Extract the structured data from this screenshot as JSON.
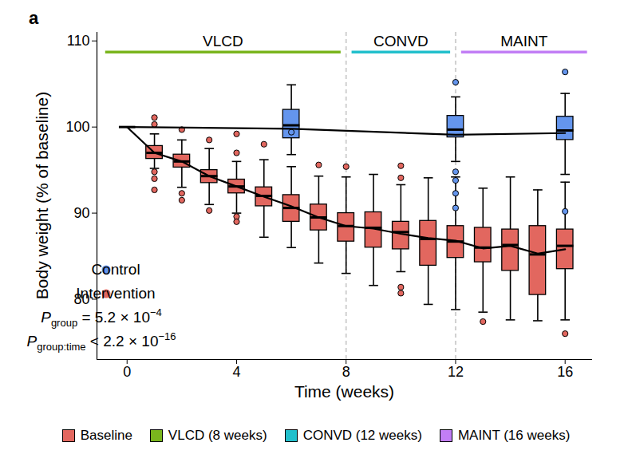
{
  "chart_data": {
    "type": "box",
    "title": "a",
    "x_label": "Time (weeks)",
    "y_label": "Body weight (% of baseline)",
    "xlim": [
      -1.1,
      17
    ],
    "ylim": [
      73,
      111
    ],
    "xticks": [
      0,
      4,
      8,
      12,
      16
    ],
    "yticks": [
      80,
      90,
      100,
      110
    ],
    "legend": "bottom-left",
    "dividers": [
      8,
      12
    ],
    "phase_y": 108.7,
    "phases": [
      {
        "name": "VLCD",
        "start": -0.8,
        "end": 7.8,
        "color": "#7ab51d"
      },
      {
        "name": "CONVD",
        "start": 8.2,
        "end": 11.8,
        "color": "#22c0cc"
      },
      {
        "name": "MAINT",
        "start": 12.2,
        "end": 16.8,
        "color": "#c27ef5"
      }
    ],
    "phase_legend": [
      {
        "label": "Baseline",
        "color": "#e2675f"
      },
      {
        "label": "VLCD (8 weeks)",
        "color": "#7ab51d"
      },
      {
        "label": "CONVD (12 weeks)",
        "color": "#22c0cc"
      },
      {
        "label": "MAINT (16 weeks)",
        "color": "#c27ef5"
      }
    ],
    "annotations": [
      {
        "text": "P",
        "subscript": "group",
        "rest": " = 5.2 × 10",
        "superscript": "−4"
      },
      {
        "text": "P",
        "subscript": "group:time",
        "rest": " < 2.2 × 10",
        "superscript": "−16"
      }
    ],
    "series": [
      {
        "name": "Control",
        "color": "#6495ed",
        "x": [
          0,
          6,
          12,
          16
        ],
        "values": [
          100,
          99.8,
          99.1,
          99.3
        ],
        "boxes": [
          {
            "x": 6,
            "min": 96.8,
            "q1": 98.7,
            "median": 100.2,
            "q3": 102.0,
            "max": 104.9,
            "outliers": [
              99.4
            ]
          },
          {
            "x": 12,
            "min": 96.0,
            "q1": 98.8,
            "median": 99.7,
            "q3": 101.3,
            "max": 103.5,
            "outliers": [
              105.2,
              94.8,
              93.8,
              92.3,
              90.6
            ]
          },
          {
            "x": 16,
            "min": 94.5,
            "q1": 98.5,
            "median": 99.6,
            "q3": 101.2,
            "max": 103.9,
            "outliers": [
              106.4,
              90.2
            ]
          }
        ]
      },
      {
        "name": "Intervention",
        "color": "#e2675f",
        "x": [
          0,
          1,
          2,
          3,
          4,
          5,
          6,
          7,
          8,
          9,
          10,
          11,
          12,
          13,
          14,
          15,
          16
        ],
        "values": [
          100,
          97,
          96,
          94.3,
          93.1,
          91.9,
          90.8,
          89.5,
          88.5,
          88.2,
          87.6,
          87.1,
          86.8,
          85.9,
          86.2,
          85.3,
          85.8
        ],
        "boxes": [
          {
            "x": 0,
            "min": 100,
            "q1": 100,
            "median": 100,
            "q3": 100,
            "max": 100
          },
          {
            "x": 1,
            "min": 95.2,
            "q1": 96.3,
            "median": 97.0,
            "q3": 97.8,
            "max": 99.2,
            "outliers": [
              101.1,
              100.3,
              94.8,
              94.0,
              92.7
            ]
          },
          {
            "x": 2,
            "min": 93.0,
            "q1": 95.3,
            "median": 96.0,
            "q3": 96.8,
            "max": 98.5,
            "outliers": [
              99.7,
              92.3,
              91.5
            ]
          },
          {
            "x": 3,
            "min": 91.0,
            "q1": 93.5,
            "median": 94.3,
            "q3": 95.0,
            "max": 97.5,
            "outliers": [
              98.5,
              90.3
            ]
          },
          {
            "x": 4,
            "min": 90.0,
            "q1": 92.3,
            "median": 93.1,
            "q3": 93.9,
            "max": 96.0,
            "outliers": [
              99.2,
              97.0,
              89.6,
              89.0
            ]
          },
          {
            "x": 5,
            "min": 87.2,
            "q1": 90.8,
            "median": 92.0,
            "q3": 93.0,
            "max": 96.2,
            "outliers": [
              98.0
            ]
          },
          {
            "x": 6,
            "min": 86.0,
            "q1": 89.0,
            "median": 90.6,
            "q3": 92.1,
            "max": 95.4
          },
          {
            "x": 7,
            "min": 84.2,
            "q1": 88.0,
            "median": 89.5,
            "q3": 91.0,
            "max": 94.3,
            "outliers": [
              95.6
            ]
          },
          {
            "x": 8,
            "min": 83.0,
            "q1": 86.7,
            "median": 88.5,
            "q3": 90.0,
            "max": 94.2,
            "outliers": [
              95.4
            ]
          },
          {
            "x": 9,
            "min": 81.6,
            "q1": 86.0,
            "median": 88.3,
            "q3": 90.1,
            "max": 94.5
          },
          {
            "x": 10,
            "min": 83.2,
            "q1": 85.8,
            "median": 87.8,
            "q3": 89.0,
            "max": 93.3,
            "outliers": [
              95.5,
              94.1,
              81.4,
              80.7
            ]
          },
          {
            "x": 11,
            "min": 79.4,
            "q1": 83.9,
            "median": 87.0,
            "q3": 89.1,
            "max": 94.1
          },
          {
            "x": 12,
            "min": 78.8,
            "q1": 84.8,
            "median": 86.7,
            "q3": 88.5,
            "max": 94.2
          },
          {
            "x": 13,
            "min": 78.5,
            "q1": 84.3,
            "median": 86.0,
            "q3": 88.3,
            "max": 92.9,
            "outliers": [
              77.4
            ]
          },
          {
            "x": 14,
            "min": 77.6,
            "q1": 83.3,
            "median": 86.3,
            "q3": 88.1,
            "max": 94.2
          },
          {
            "x": 15,
            "min": 77.5,
            "q1": 80.5,
            "median": 85.2,
            "q3": 88.5,
            "max": 92.7
          },
          {
            "x": 16,
            "min": 77.6,
            "q1": 83.5,
            "median": 86.2,
            "q3": 88.1,
            "max": 93.6,
            "outliers": [
              76.0
            ]
          }
        ]
      }
    ]
  }
}
